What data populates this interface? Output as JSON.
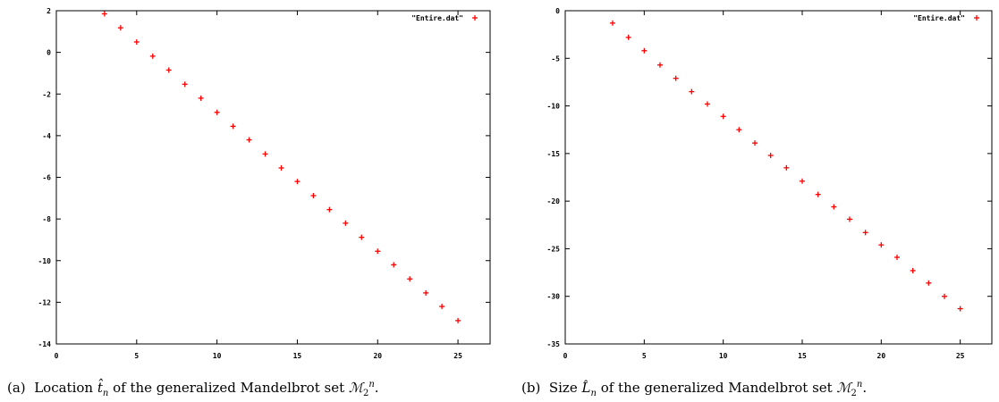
{
  "chart_data": [
    {
      "type": "scatter",
      "legend": "\"Entire.dat\"",
      "legend_position": "top-right",
      "marker": "+",
      "color": "#ff0000",
      "xlim": [
        0,
        27
      ],
      "ylim": [
        -14,
        2
      ],
      "xticks": [
        "0",
        "5",
        "10",
        "15",
        "20",
        "25"
      ],
      "yticks": [
        "2",
        "0",
        "-2",
        "-4",
        "-6",
        "-8",
        "-10",
        "-12",
        "-14"
      ],
      "xtick_values": [
        0,
        5,
        10,
        15,
        20,
        25
      ],
      "ytick_values": [
        2,
        0,
        -2,
        -4,
        -6,
        -8,
        -10,
        -12,
        -14
      ],
      "x": [
        3,
        4,
        5,
        6,
        7,
        8,
        9,
        10,
        11,
        12,
        13,
        14,
        15,
        16,
        17,
        18,
        19,
        20,
        21,
        22,
        23,
        24,
        25
      ],
      "y": [
        1.85,
        1.18,
        0.5,
        -0.18,
        -0.85,
        -1.53,
        -2.2,
        -2.88,
        -3.55,
        -4.2,
        -4.88,
        -5.55,
        -6.2,
        -6.88,
        -7.55,
        -8.2,
        -8.88,
        -9.55,
        -10.2,
        -10.88,
        -11.55,
        -12.2,
        -12.88
      ],
      "caption": {
        "label": "(a)",
        "text_before": "Location",
        "symbol": "t̂",
        "symbol_sub": "n",
        "text_after": "of the generalized Mandelbrot set",
        "set": "ℳ",
        "set_sub": "2",
        "set_sup": "n",
        "end": "."
      }
    },
    {
      "type": "scatter",
      "legend": "\"Entire.dat\"",
      "legend_position": "top-right",
      "marker": "+",
      "color": "#ff0000",
      "xlim": [
        0,
        27
      ],
      "ylim": [
        -35,
        0
      ],
      "xticks": [
        "0",
        "5",
        "10",
        "15",
        "20",
        "25"
      ],
      "yticks": [
        "0",
        "-5",
        "-10",
        "-15",
        "-20",
        "-25",
        "-30",
        "-35"
      ],
      "xtick_values": [
        0,
        5,
        10,
        15,
        20,
        25
      ],
      "ytick_values": [
        0,
        -5,
        -10,
        -15,
        -20,
        -25,
        -30,
        -35
      ],
      "x": [
        3,
        4,
        5,
        6,
        7,
        8,
        9,
        10,
        11,
        12,
        13,
        14,
        15,
        16,
        17,
        18,
        19,
        20,
        21,
        22,
        23,
        24,
        25
      ],
      "y": [
        -1.3,
        -2.8,
        -4.2,
        -5.7,
        -7.1,
        -8.5,
        -9.8,
        -11.1,
        -12.5,
        -13.9,
        -15.2,
        -16.5,
        -17.9,
        -19.3,
        -20.6,
        -21.9,
        -23.3,
        -24.6,
        -25.9,
        -27.3,
        -28.6,
        -30.0,
        -31.3
      ],
      "caption": {
        "label": "(b)",
        "text_before": "Size",
        "symbol": "L̂",
        "symbol_sub": "n",
        "text_after": "of the generalized Mandelbrot set",
        "set": "ℳ",
        "set_sub": "2",
        "set_sup": "n",
        "end": "."
      }
    }
  ]
}
